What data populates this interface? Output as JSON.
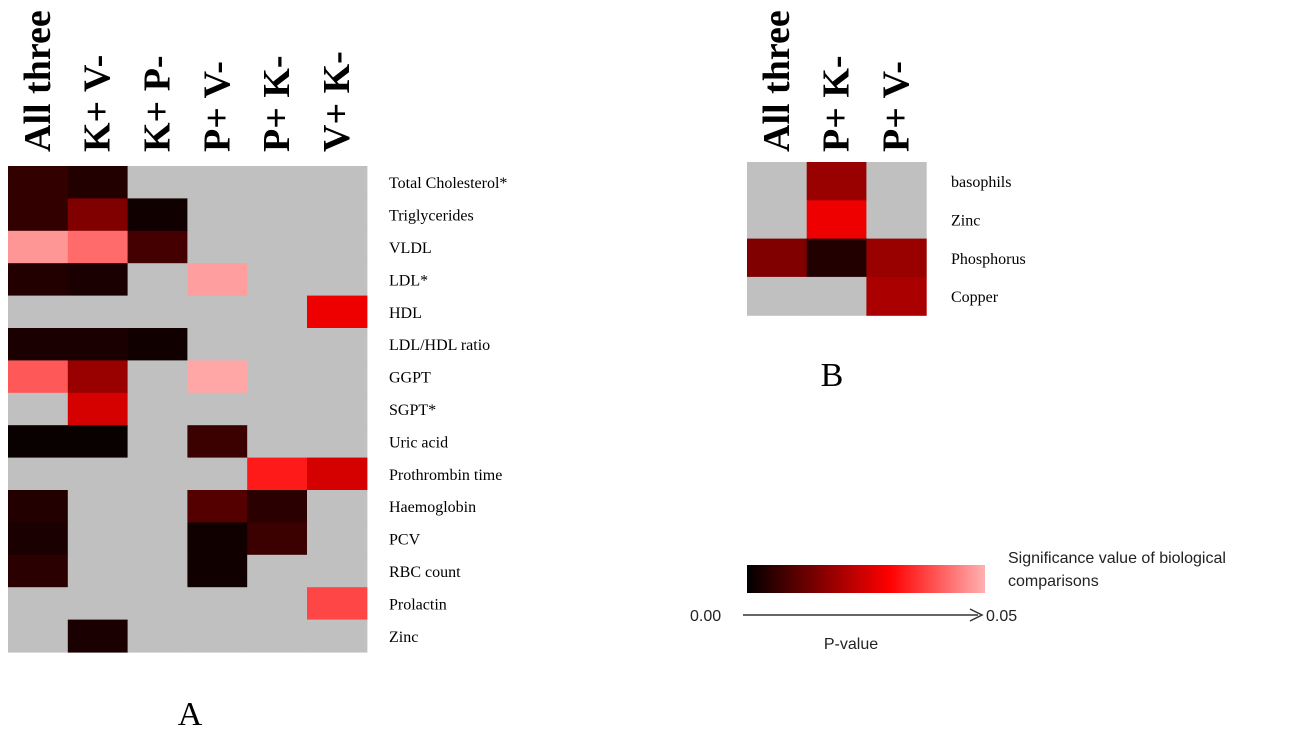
{
  "chart_data": [
    {
      "type": "heatmap",
      "panel_label": "A",
      "columns": [
        "All three",
        "K+ V-",
        "K+ P-",
        "P+ V-",
        "P+ K-",
        "V+ K-"
      ],
      "rows": [
        "Total Cholesterol*",
        "Triglycerides",
        "VLDL",
        "LDL*",
        "HDL",
        "LDL/HDL ratio",
        "GGPT",
        "SGPT*",
        "Uric acid",
        "Prothrombin time",
        "Haemoglobin",
        "PCV",
        "RBC count",
        "Prolactin",
        "Zinc"
      ],
      "values": [
        [
          0.006,
          0.004,
          null,
          null,
          null,
          null
        ],
        [
          0.006,
          0.015,
          0.002,
          null,
          null,
          null
        ],
        [
          0.047,
          0.042,
          0.008,
          null,
          null,
          null
        ],
        [
          0.004,
          0.003,
          null,
          0.048,
          null,
          null
        ],
        [
          null,
          null,
          null,
          null,
          null,
          0.028
        ],
        [
          0.003,
          0.003,
          0.002,
          null,
          null,
          null
        ],
        [
          0.04,
          0.018,
          null,
          0.049,
          null,
          null
        ],
        [
          null,
          0.025,
          null,
          null,
          null,
          null
        ],
        [
          0.001,
          0.001,
          null,
          0.007,
          null,
          null
        ],
        [
          null,
          null,
          null,
          null,
          0.033,
          0.025
        ],
        [
          0.004,
          null,
          null,
          0.01,
          0.005,
          null
        ],
        [
          0.003,
          null,
          null,
          0.002,
          0.007,
          null
        ],
        [
          0.005,
          null,
          null,
          0.002,
          null,
          null
        ],
        [
          null,
          null,
          null,
          null,
          null,
          0.038
        ],
        [
          null,
          0.003,
          null,
          null,
          null,
          null
        ]
      ]
    },
    {
      "type": "heatmap",
      "panel_label": "B",
      "columns": [
        "All three",
        "P+ K-",
        "P+ V-"
      ],
      "rows": [
        "basophils",
        "Zinc",
        "Phosphorus",
        "Copper"
      ],
      "values": [
        [
          null,
          0.018,
          null
        ],
        [
          null,
          0.028,
          null
        ],
        [
          0.015,
          0.004,
          0.018
        ],
        [
          null,
          null,
          0.02
        ]
      ]
    }
  ],
  "legend": {
    "title_line1": "Significance value of biological",
    "title_line2": "comparisons",
    "min_label": "0.00",
    "max_label": "0.05",
    "axis_label": "P-value",
    "range": [
      0.0,
      0.05
    ]
  },
  "colors": {
    "missing": "#c0c0c0",
    "scale_dark": "#000000",
    "scale_mid": "#ff0000",
    "scale_light": "#ffb0b0"
  }
}
